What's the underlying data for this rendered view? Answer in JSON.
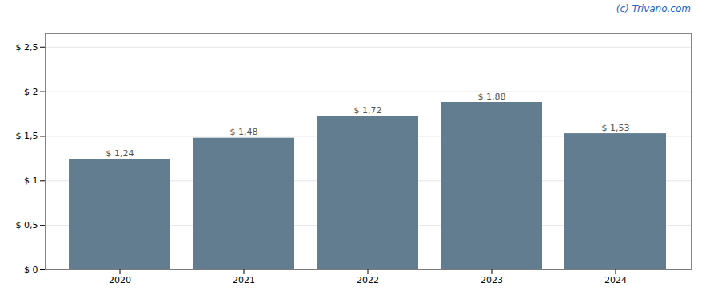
{
  "chart_data": {
    "type": "bar",
    "annotation": "(c) Trivano.com",
    "categories": [
      "2020",
      "2021",
      "2022",
      "2023",
      "2024"
    ],
    "values": [
      1.24,
      1.48,
      1.72,
      1.88,
      1.53
    ],
    "value_labels": [
      "$ 1,24",
      "$ 1,48",
      "$ 1,72",
      "$ 1,88",
      "$ 1,53"
    ],
    "data_labels": true,
    "color": "#617d8f",
    "ylim": [
      0,
      2.65
    ],
    "yticks": [
      {
        "value": 0,
        "label": "$ 0"
      },
      {
        "value": 0.5,
        "label": "$ 0,5"
      },
      {
        "value": 1.0,
        "label": "$ 1"
      },
      {
        "value": 1.5,
        "label": "$ 1,5"
      },
      {
        "value": 2.0,
        "label": "$ 2"
      },
      {
        "value": 2.5,
        "label": "$ 2,5"
      }
    ],
    "grid": true
  }
}
